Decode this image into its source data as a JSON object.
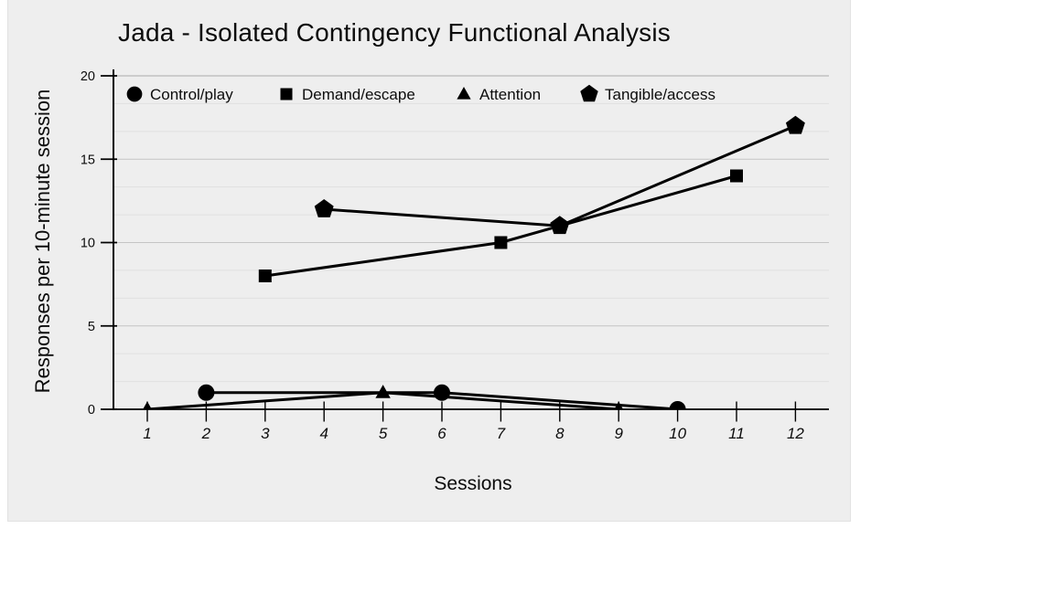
{
  "panel": {
    "background": "#eeeeee"
  },
  "chart_data": {
    "type": "line",
    "title": "Jada - Isolated Contingency Functional Analysis",
    "xlabel": "Sessions",
    "ylabel": "Responses per 10-minute session",
    "x_ticks": [
      1,
      2,
      3,
      4,
      5,
      6,
      7,
      8,
      9,
      10,
      11,
      12
    ],
    "xlim": [
      1,
      12
    ],
    "ylim": [
      0,
      20
    ],
    "y_major_ticks": [
      0,
      5,
      10,
      15,
      20
    ],
    "y_minor_divisions": 3,
    "grid": true,
    "legend_position": "top-inside",
    "series": [
      {
        "name": "Control/play",
        "marker": "circle",
        "points": [
          [
            2,
            1
          ],
          [
            6,
            1
          ],
          [
            10,
            0
          ]
        ]
      },
      {
        "name": "Demand/escape",
        "marker": "square",
        "points": [
          [
            3,
            8
          ],
          [
            7,
            10
          ],
          [
            11,
            14
          ]
        ]
      },
      {
        "name": "Attention",
        "marker": "triangle",
        "points": [
          [
            1,
            0
          ],
          [
            5,
            1
          ],
          [
            9,
            0
          ]
        ]
      },
      {
        "name": "Tangible/access",
        "marker": "pentagon",
        "points": [
          [
            4,
            12
          ],
          [
            8,
            11
          ],
          [
            12,
            17
          ]
        ]
      }
    ],
    "colors": {
      "series": "#000000",
      "axis": "#000000",
      "text": "#0c0c0c",
      "major_grid": "#c4c4c4",
      "top_grid": "#ababab",
      "minor_grid": "#e0e0e0"
    }
  }
}
